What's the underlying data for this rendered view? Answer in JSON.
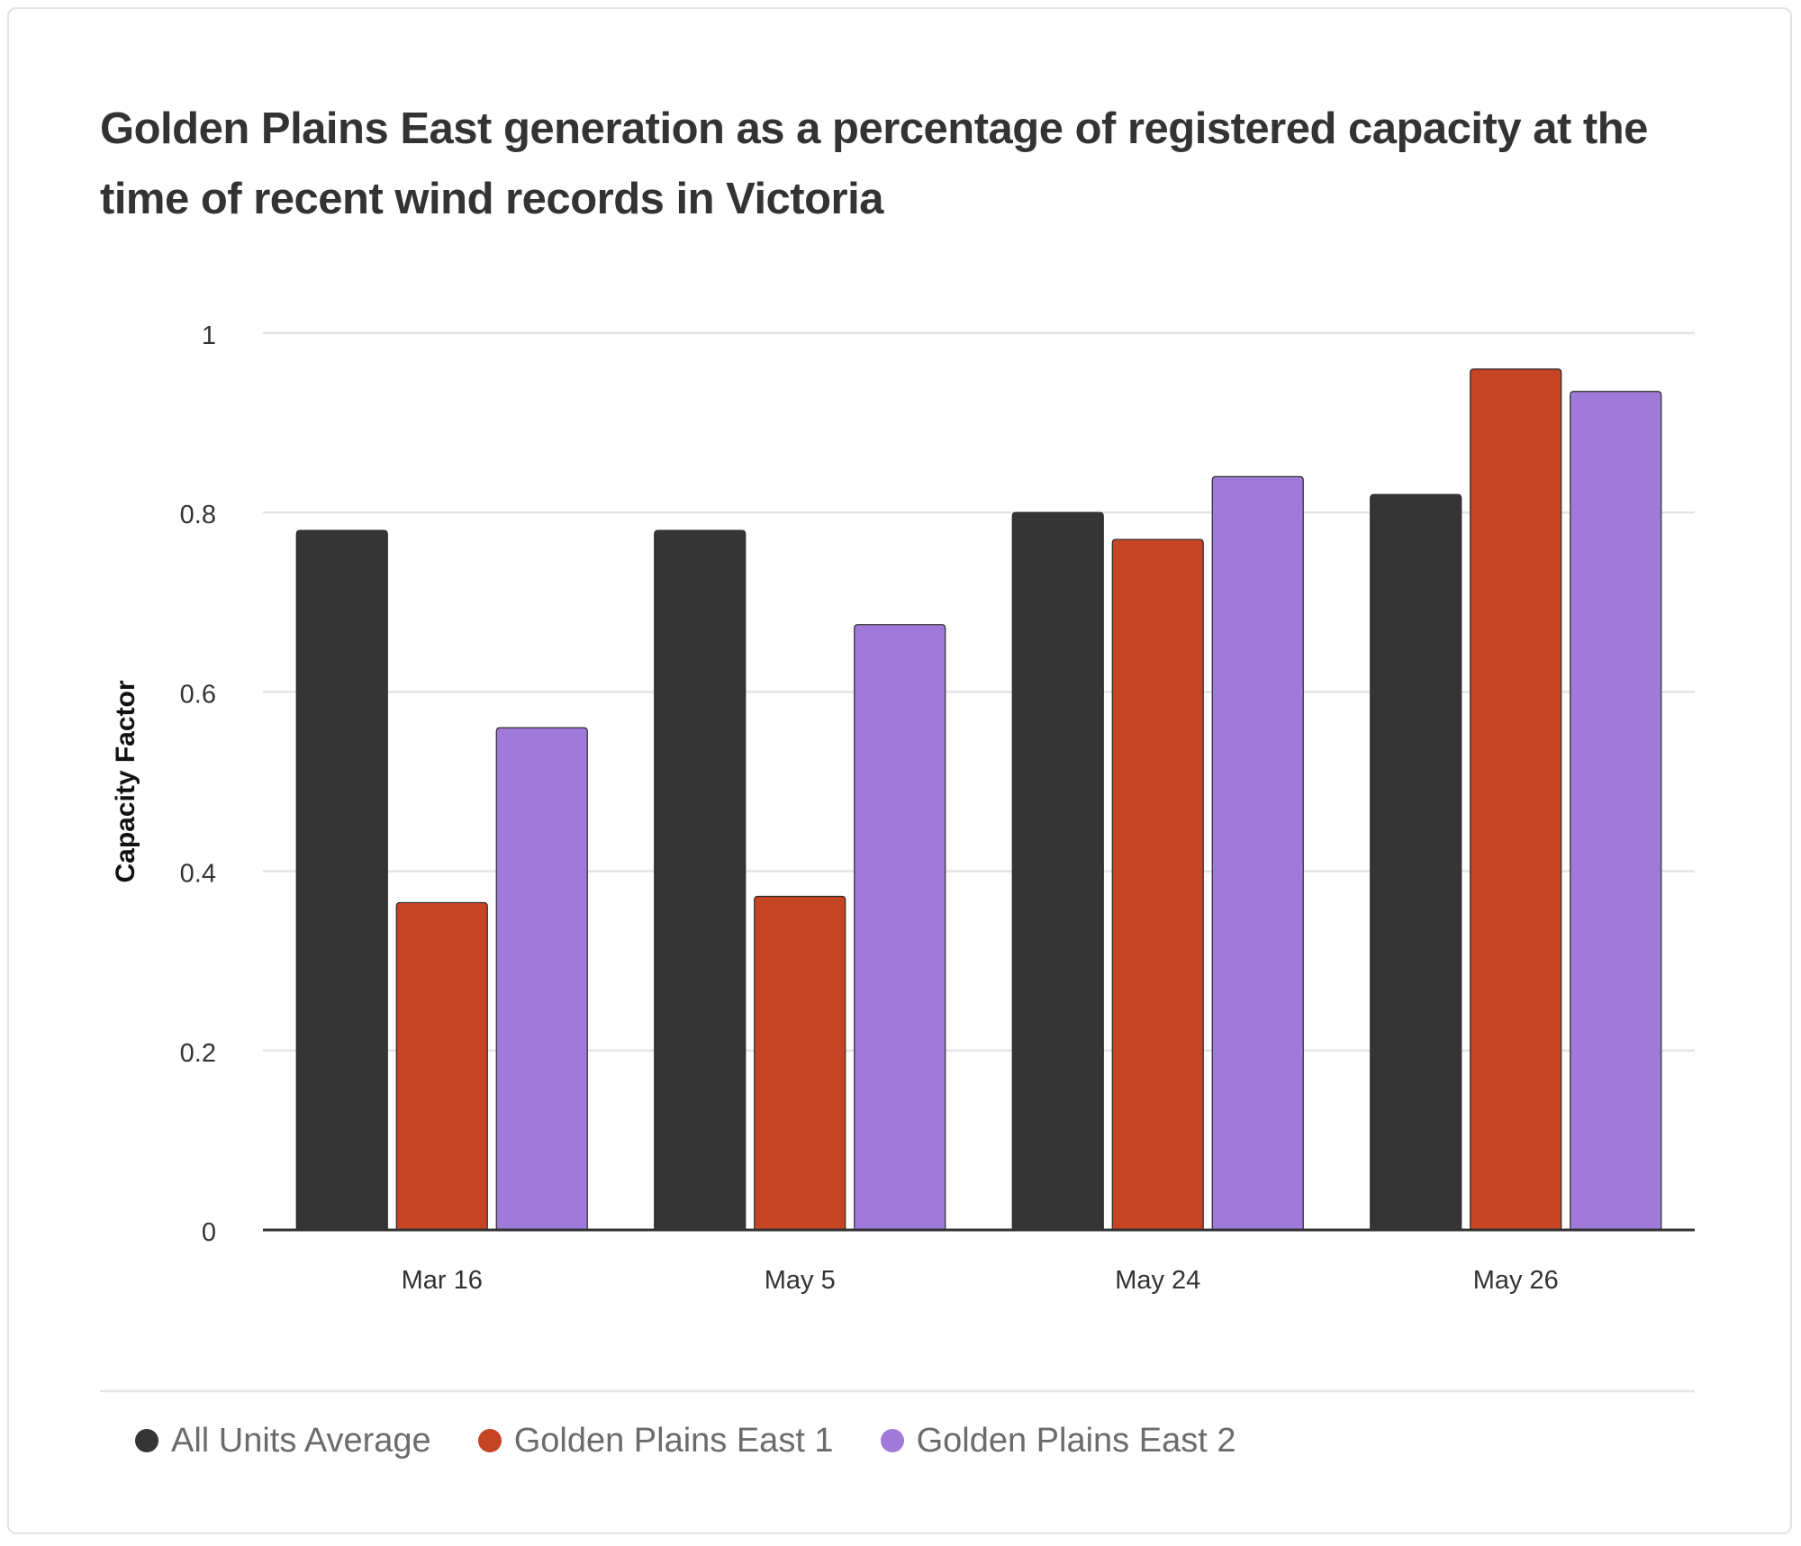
{
  "colors": {
    "all_units": "#353535",
    "gpe1": "#c44424",
    "gpe2": "#a07ad8",
    "grid": "#e4e4e4",
    "axis": "#333333",
    "tick_text": "#333333",
    "title": "#333333"
  },
  "chart_data": {
    "type": "bar",
    "title": "Golden Plains East generation as a percentage of registered capacity at the time of recent wind records in Victoria",
    "xlabel": "",
    "ylabel": "Capacity Factor",
    "categories": [
      "Mar 16",
      "May 5",
      "May 24",
      "May 26"
    ],
    "series": [
      {
        "name": "All Units Average",
        "values": [
          0.78,
          0.78,
          0.8,
          0.82
        ]
      },
      {
        "name": "Golden Plains East 1",
        "values": [
          0.365,
          0.372,
          0.77,
          0.96
        ]
      },
      {
        "name": "Golden Plains East 2",
        "values": [
          0.56,
          0.675,
          0.84,
          0.935
        ]
      }
    ],
    "ylim": [
      0,
      1
    ],
    "yticks": [
      0,
      0.2,
      0.4,
      0.6,
      0.8,
      1
    ],
    "ytick_labels": [
      "0",
      "0.2",
      "0.4",
      "0.6",
      "0.8",
      "1"
    ],
    "grid": true,
    "legend_position": "bottom-left"
  }
}
